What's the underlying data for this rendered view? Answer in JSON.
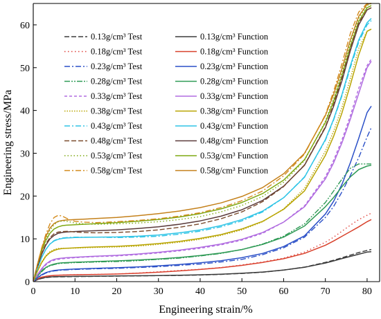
{
  "chart_data": {
    "type": "line",
    "xlabel": "Engineering strain/%",
    "ylabel": "Engineering stress/MPa",
    "xlim": [
      0,
      83
    ],
    "ylim": [
      0,
      65
    ],
    "xticks": [
      0,
      10,
      20,
      30,
      40,
      50,
      60,
      70,
      80
    ],
    "yticks": [
      0,
      10,
      20,
      30,
      40,
      50,
      60
    ],
    "legend_position": "top-left",
    "grid": false,
    "x": [
      0,
      1,
      2,
      3,
      4,
      5,
      6,
      7,
      8,
      9,
      10,
      12,
      15,
      20,
      25,
      30,
      35,
      40,
      45,
      50,
      55,
      60,
      65,
      70,
      72,
      74,
      76,
      78,
      80,
      81
    ],
    "series": [
      {
        "name": "0.13g/cm³ Test",
        "kind": "test",
        "density": "0.13",
        "color": "#3a3a3a",
        "dash": "7,3",
        "values": [
          0,
          0.45,
          0.75,
          0.95,
          1.05,
          1.1,
          1.12,
          1.13,
          1.15,
          1.16,
          1.18,
          1.2,
          1.25,
          1.3,
          1.35,
          1.4,
          1.45,
          1.55,
          1.7,
          1.9,
          2.2,
          2.7,
          3.4,
          4.5,
          5.0,
          5.6,
          6.2,
          6.8,
          7.3,
          7.5
        ]
      },
      {
        "name": "0.18g/cm³ Test",
        "kind": "test",
        "density": "0.18",
        "color": "#e0403a",
        "dash": "1.5,3.5",
        "values": [
          0,
          0.6,
          1.0,
          1.2,
          1.35,
          1.45,
          1.5,
          1.55,
          1.57,
          1.6,
          1.62,
          1.65,
          1.7,
          1.8,
          2.0,
          2.3,
          2.6,
          2.9,
          3.3,
          3.9,
          4.6,
          5.5,
          6.9,
          9.2,
          10.4,
          11.8,
          13.2,
          14.5,
          15.5,
          16.0
        ]
      },
      {
        "name": "0.23g/cm³ Test",
        "kind": "test",
        "density": "0.23",
        "color": "#2a4fc7",
        "dash": "8,3,2,3",
        "values": [
          0,
          0.8,
          1.5,
          2.0,
          2.3,
          2.5,
          2.6,
          2.7,
          2.75,
          2.8,
          2.85,
          2.9,
          3.0,
          3.1,
          3.3,
          3.5,
          3.8,
          4.1,
          4.6,
          5.2,
          6.3,
          7.9,
          10.4,
          15.0,
          17.6,
          21.0,
          24.8,
          29.0,
          33.8,
          36.0
        ]
      },
      {
        "name": "0.28g/cm³ Test",
        "kind": "test",
        "density": "0.28",
        "color": "#2e9a55",
        "dash": "8,2,2,2,2,2",
        "values": [
          0,
          1.2,
          2.3,
          3.2,
          3.7,
          4.0,
          4.2,
          4.3,
          4.35,
          4.4,
          4.45,
          4.5,
          4.6,
          4.7,
          4.9,
          5.2,
          5.5,
          6.0,
          6.6,
          7.5,
          8.8,
          10.6,
          13.5,
          18.5,
          21.2,
          24.0,
          26.5,
          27.5,
          27.5,
          27.5
        ]
      },
      {
        "name": "0.33g/cm³ Test",
        "kind": "test",
        "density": "0.33",
        "color": "#b06be0",
        "dash": "4,3",
        "values": [
          0,
          1.4,
          2.8,
          3.9,
          4.6,
          5.0,
          5.2,
          5.35,
          5.45,
          5.5,
          5.6,
          5.7,
          5.85,
          6.0,
          6.3,
          6.7,
          7.2,
          7.8,
          8.6,
          9.7,
          11.3,
          13.9,
          17.7,
          24.5,
          28.4,
          33.2,
          38.8,
          45.2,
          50.5,
          52.0
        ]
      },
      {
        "name": "0.38g/cm³ Test",
        "kind": "test",
        "density": "0.38",
        "color": "#b8a400",
        "dash": "1.5,2",
        "values": [
          0,
          2.5,
          4.6,
          6.1,
          7.0,
          7.5,
          7.75,
          7.8,
          7.8,
          7.82,
          7.85,
          7.9,
          8.0,
          8.1,
          8.3,
          8.7,
          9.2,
          9.9,
          10.8,
          12.1,
          14.0,
          17.0,
          21.8,
          30.5,
          35.2,
          40.8,
          47.5,
          54.5,
          58.5,
          59.0
        ]
      },
      {
        "name": "0.43g/cm³ Test",
        "kind": "test",
        "density": "0.43",
        "color": "#2ec4e6",
        "dash": "8,3,2,3",
        "values": [
          0,
          3.0,
          5.6,
          7.5,
          8.8,
          9.6,
          10.0,
          10.2,
          10.3,
          10.35,
          10.4,
          10.4,
          10.4,
          10.3,
          10.4,
          10.6,
          11.1,
          11.8,
          12.8,
          14.2,
          16.3,
          19.6,
          24.5,
          33.0,
          37.8,
          43.5,
          50.0,
          56.0,
          60.0,
          61.0
        ]
      },
      {
        "name": "0.48g/cm³ Test",
        "kind": "test",
        "density": "0.48",
        "color": "#7a4a2c",
        "dash": "7,3",
        "values": [
          0,
          3.5,
          6.5,
          8.8,
          10.3,
          11.2,
          11.6,
          11.7,
          11.75,
          11.7,
          11.6,
          11.5,
          11.4,
          11.5,
          11.7,
          12.1,
          12.7,
          13.5,
          14.7,
          16.3,
          18.7,
          22.2,
          27.3,
          36.2,
          41.5,
          47.8,
          54.5,
          60.5,
          63.5,
          64.0
        ]
      },
      {
        "name": "0.53g/cm³ Test",
        "kind": "test",
        "density": "0.53",
        "color": "#7ea812",
        "dash": "1.5,3",
        "values": [
          0,
          3.8,
          7.2,
          10.0,
          12.0,
          13.3,
          14.0,
          14.2,
          14.1,
          13.9,
          13.7,
          13.5,
          13.4,
          13.5,
          13.7,
          14.0,
          14.5,
          15.2,
          16.3,
          17.8,
          19.9,
          23.2,
          28.3,
          37.5,
          42.8,
          49.0,
          56.0,
          61.5,
          64.5,
          65.0
        ]
      },
      {
        "name": "0.58g/cm³ Test",
        "kind": "test",
        "density": "0.58",
        "color": "#d38a1a",
        "dash": "8,3,2,3",
        "values": [
          0,
          4.0,
          7.8,
          11.0,
          13.5,
          15.0,
          15.5,
          15.3,
          14.8,
          14.4,
          14.1,
          13.9,
          13.8,
          14.0,
          14.3,
          14.7,
          15.3,
          16.1,
          17.3,
          18.9,
          21.2,
          24.7,
          29.8,
          39.0,
          44.5,
          51.0,
          58.0,
          63.0,
          65.0,
          65.0
        ]
      },
      {
        "name": "0.13g/cm³ Function",
        "kind": "function",
        "density": "0.13",
        "color": "#3a3a3a",
        "dash": "",
        "values": [
          0,
          0.5,
          0.8,
          1.0,
          1.1,
          1.15,
          1.18,
          1.2,
          1.21,
          1.22,
          1.23,
          1.25,
          1.28,
          1.32,
          1.37,
          1.43,
          1.5,
          1.6,
          1.75,
          1.95,
          2.25,
          2.7,
          3.35,
          4.35,
          4.85,
          5.4,
          5.9,
          6.4,
          6.9,
          7.0
        ]
      },
      {
        "name": "0.18g/cm³ Function",
        "kind": "function",
        "density": "0.18",
        "color": "#d8402a",
        "dash": "",
        "values": [
          0,
          0.65,
          1.05,
          1.25,
          1.38,
          1.45,
          1.5,
          1.53,
          1.55,
          1.57,
          1.6,
          1.63,
          1.68,
          1.78,
          1.95,
          2.2,
          2.5,
          2.85,
          3.25,
          3.8,
          4.5,
          5.35,
          6.6,
          8.5,
          9.5,
          10.6,
          11.7,
          12.8,
          14.0,
          14.5
        ]
      },
      {
        "name": "0.23g/cm³ Function",
        "kind": "function",
        "density": "0.23",
        "color": "#2a4fc7",
        "dash": "",
        "values": [
          0,
          0.9,
          1.6,
          2.1,
          2.4,
          2.6,
          2.7,
          2.8,
          2.85,
          2.9,
          2.95,
          3.0,
          3.1,
          3.25,
          3.45,
          3.7,
          4.0,
          4.4,
          4.9,
          5.6,
          6.6,
          8.2,
          10.7,
          15.8,
          18.8,
          22.8,
          27.8,
          33.5,
          39.5,
          41.0
        ]
      },
      {
        "name": "0.28g/cm³ Function",
        "kind": "function",
        "density": "0.28",
        "color": "#2e9a55",
        "dash": "",
        "values": [
          0,
          1.3,
          2.5,
          3.3,
          3.8,
          4.1,
          4.3,
          4.4,
          4.45,
          4.5,
          4.55,
          4.6,
          4.7,
          4.85,
          5.05,
          5.3,
          5.65,
          6.1,
          6.7,
          7.5,
          8.7,
          10.4,
          13.0,
          17.5,
          19.7,
          22.2,
          24.5,
          26.2,
          27.0,
          27.2
        ]
      },
      {
        "name": "0.33g/cm³ Function",
        "kind": "function",
        "density": "0.33",
        "color": "#b06be0",
        "dash": "",
        "values": [
          0,
          1.6,
          3.0,
          4.1,
          4.8,
          5.2,
          5.4,
          5.5,
          5.6,
          5.65,
          5.7,
          5.8,
          5.95,
          6.15,
          6.45,
          6.85,
          7.35,
          8.0,
          8.8,
          9.9,
          11.5,
          13.9,
          17.5,
          24.0,
          27.8,
          32.5,
          38.0,
          44.0,
          50.0,
          51.5
        ]
      },
      {
        "name": "0.38g/cm³ Function",
        "kind": "function",
        "density": "0.38",
        "color": "#b8a400",
        "dash": "",
        "values": [
          0,
          2.4,
          4.4,
          5.9,
          6.8,
          7.3,
          7.6,
          7.75,
          7.8,
          7.85,
          7.9,
          8.0,
          8.1,
          8.25,
          8.5,
          8.9,
          9.4,
          10.1,
          11.0,
          12.3,
          14.1,
          16.9,
          21.2,
          29.5,
          34.0,
          39.5,
          46.0,
          53.0,
          58.5,
          59.0
        ]
      },
      {
        "name": "0.43g/cm³ Function",
        "kind": "function",
        "density": "0.43",
        "color": "#2ec4e6",
        "dash": "",
        "values": [
          0,
          3.0,
          5.6,
          7.5,
          8.8,
          9.5,
          9.9,
          10.1,
          10.2,
          10.25,
          10.3,
          10.35,
          10.4,
          10.45,
          10.6,
          10.9,
          11.4,
          12.1,
          13.1,
          14.5,
          16.5,
          19.6,
          24.4,
          33.2,
          38.0,
          43.8,
          50.5,
          56.5,
          60.5,
          61.5
        ]
      },
      {
        "name": "0.48g/cm³ Function",
        "kind": "function",
        "density": "0.48",
        "color": "#5a3a3a",
        "dash": "",
        "values": [
          0,
          3.4,
          6.3,
          8.5,
          10.0,
          10.8,
          11.3,
          11.5,
          11.6,
          11.65,
          11.7,
          11.8,
          11.9,
          12.1,
          12.4,
          12.8,
          13.4,
          14.2,
          15.3,
          16.8,
          19.0,
          22.3,
          27.2,
          36.0,
          41.0,
          47.0,
          54.0,
          60.0,
          63.5,
          64.0
        ]
      },
      {
        "name": "0.53g/cm³ Function",
        "kind": "function",
        "density": "0.53",
        "color": "#7ea812",
        "dash": "",
        "values": [
          0,
          3.8,
          7.1,
          9.6,
          11.3,
          12.3,
          12.8,
          13.1,
          13.2,
          13.25,
          13.3,
          13.4,
          13.55,
          13.8,
          14.1,
          14.5,
          15.1,
          15.9,
          17.0,
          18.5,
          20.6,
          23.7,
          28.5,
          37.2,
          42.2,
          48.2,
          55.0,
          60.8,
          64.0,
          64.5
        ]
      },
      {
        "name": "0.58g/cm³ Function",
        "kind": "function",
        "density": "0.58",
        "color": "#c4801a",
        "dash": "",
        "values": [
          0,
          4.0,
          7.6,
          10.5,
          12.5,
          13.6,
          14.1,
          14.3,
          14.4,
          14.45,
          14.5,
          14.6,
          14.75,
          15.0,
          15.4,
          15.9,
          16.5,
          17.3,
          18.4,
          19.9,
          22.0,
          25.2,
          30.0,
          38.8,
          43.8,
          49.8,
          56.5,
          62.0,
          64.8,
          65.0
        ]
      }
    ]
  }
}
